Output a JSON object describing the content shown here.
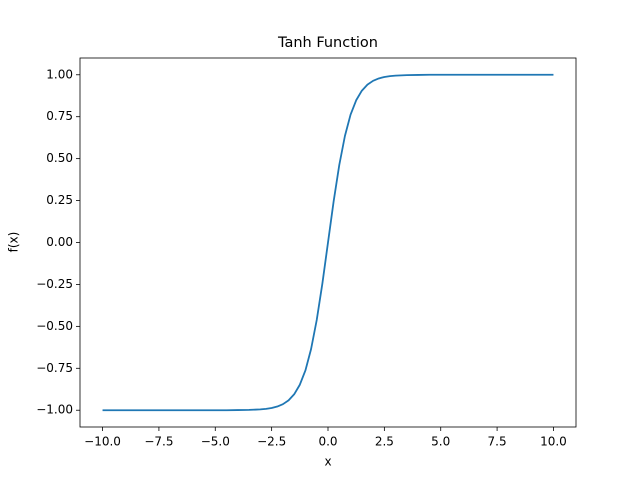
{
  "chart_data": {
    "type": "line",
    "title": "Tanh Function",
    "x_label": "x",
    "y_label": "f(x)",
    "x": [
      -10,
      -9,
      -8,
      -7,
      -6,
      -5,
      -4.5,
      -4,
      -3.5,
      -3,
      -2.75,
      -2.5,
      -2.25,
      -2,
      -1.75,
      -1.5,
      -1.25,
      -1,
      -0.75,
      -0.5,
      -0.25,
      0,
      0.25,
      0.5,
      0.75,
      1,
      1.25,
      1.5,
      1.75,
      2,
      2.25,
      2.5,
      2.75,
      3,
      3.5,
      4,
      4.5,
      5,
      6,
      7,
      8,
      9,
      10
    ],
    "series": [
      {
        "color": "#1f77b4",
        "values": [
          -1,
          -1,
          -1,
          -1,
          -1,
          -1,
          -1,
          -0.999,
          -0.998,
          -0.995,
          -0.992,
          -0.987,
          -0.978,
          -0.964,
          -0.941,
          -0.905,
          -0.848,
          -0.762,
          -0.635,
          -0.462,
          -0.245,
          0,
          0.245,
          0.462,
          0.635,
          0.762,
          0.848,
          0.905,
          0.941,
          0.964,
          0.978,
          0.987,
          0.992,
          0.995,
          0.998,
          0.999,
          1,
          1,
          1,
          1,
          1,
          1,
          1
        ]
      }
    ],
    "xlim": [
      -11,
      11
    ],
    "ylim": [
      -1.1,
      1.1
    ],
    "xticks": [
      {
        "value": -10,
        "label": "−10.0"
      },
      {
        "value": -7.5,
        "label": "−7.5"
      },
      {
        "value": -5,
        "label": "−5.0"
      },
      {
        "value": -2.5,
        "label": "−2.5"
      },
      {
        "value": 0,
        "label": "0.0"
      },
      2.5,
      {
        "value": 5,
        "label": "5.0"
      },
      7.5,
      {
        "value": 10,
        "label": "10.0"
      }
    ],
    "yticks": [
      {
        "value": -1,
        "label": "−1.00"
      },
      {
        "value": -0.75,
        "label": "−0.75"
      },
      {
        "value": -0.5,
        "label": "−0.50"
      },
      {
        "value": -0.25,
        "label": "−0.25"
      },
      {
        "value": 0,
        "label": "0.00"
      },
      0.25,
      {
        "value": 0.5,
        "label": "0.50"
      },
      0.75,
      {
        "value": 1,
        "label": "1.00"
      }
    ],
    "grid": false
  }
}
